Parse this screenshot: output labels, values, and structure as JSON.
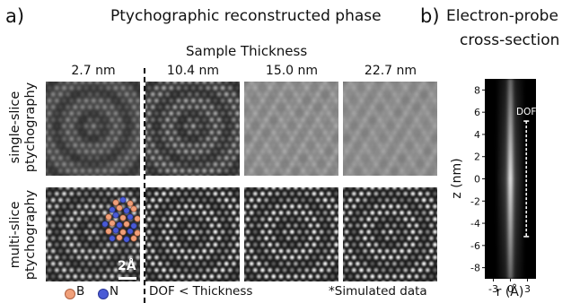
{
  "panel_a": {
    "letter": "a)",
    "title": "Ptychographic reconstructed phase",
    "thickness_header": "Sample Thickness",
    "columns": [
      "2.7 nm",
      "10.4 nm",
      "15.0 nm",
      "22.7 nm"
    ],
    "rows": [
      {
        "line1": "single-slice",
        "line2": "ptychography"
      },
      {
        "line1": "multi-slice",
        "line2": "ptychography"
      }
    ],
    "scale_bar": "2Å",
    "legend": [
      {
        "label": "B",
        "color": "#f0a07a"
      },
      {
        "label": "N",
        "color": "#4a5bd6"
      }
    ],
    "dof_note": "DOF < Thickness",
    "simulated_note": "*Simulated data"
  },
  "panel_b": {
    "letter": "b)",
    "title_line1": "Electron-probe",
    "title_line2": "cross-section",
    "z_label": "z (nm)",
    "r_label": "r (Å)",
    "z_ticks": [
      "8",
      "6",
      "4",
      "2",
      "0",
      "-2",
      "-4",
      "-6",
      "-8"
    ],
    "r_ticks": [
      "-3",
      "0",
      "3"
    ],
    "dof_label": "DOF"
  },
  "chart_data": {
    "type": "heatmap",
    "title": "Electron-probe cross-section",
    "xlabel": "r (Å)",
    "ylabel": "z (nm)",
    "xlim": [
      -4.5,
      4.5
    ],
    "ylim": [
      -9,
      9
    ],
    "x_ticks": [
      -3,
      0,
      3
    ],
    "y_ticks": [
      8,
      6,
      4,
      2,
      0,
      -2,
      -4,
      -6,
      -8
    ],
    "annotations": [
      {
        "label": "DOF",
        "x": 2.8,
        "z_range": [
          -5.2,
          5.2
        ]
      }
    ]
  }
}
